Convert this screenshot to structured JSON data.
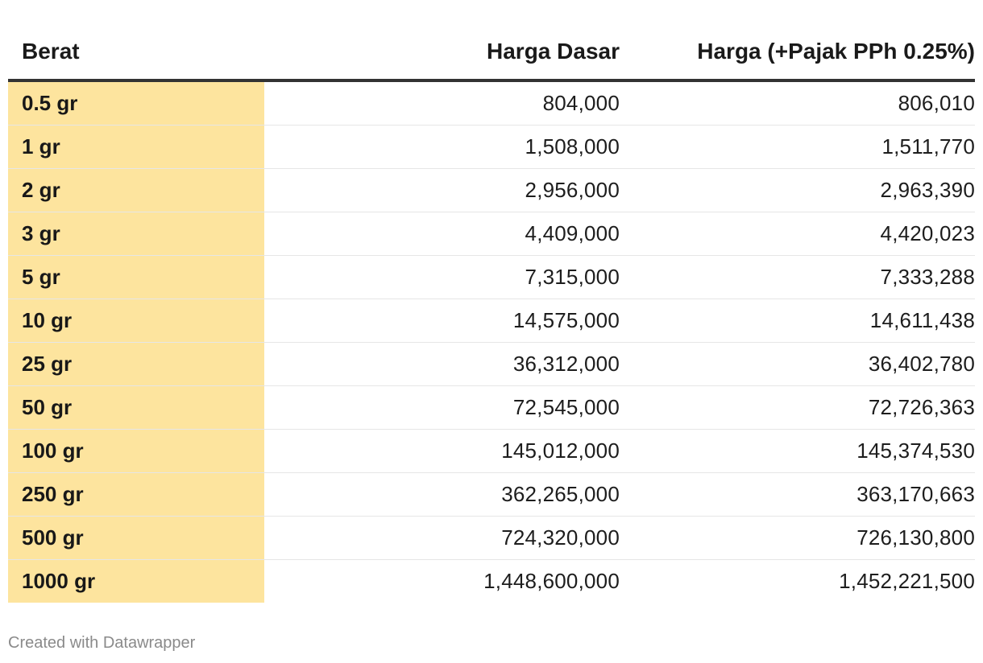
{
  "chart_data": {
    "type": "table",
    "columns": [
      "Berat",
      "Harga Dasar",
      "Harga (+Pajak PPh 0.25%)"
    ],
    "rows": [
      [
        "0.5 gr",
        "804,000",
        "806,010"
      ],
      [
        "1 gr",
        "1,508,000",
        "1,511,770"
      ],
      [
        "2 gr",
        "2,956,000",
        "2,963,390"
      ],
      [
        "3 gr",
        "4,409,000",
        "4,420,023"
      ],
      [
        "5 gr",
        "7,315,000",
        "7,333,288"
      ],
      [
        "10 gr",
        "14,575,000",
        "14,611,438"
      ],
      [
        "25 gr",
        "36,312,000",
        "36,402,780"
      ],
      [
        "50 gr",
        "72,545,000",
        "72,726,363"
      ],
      [
        "100 gr",
        "145,012,000",
        "145,374,530"
      ],
      [
        "250 gr",
        "362,265,000",
        "363,170,663"
      ],
      [
        "500 gr",
        "724,320,000",
        "726,130,800"
      ],
      [
        "1000 gr",
        "1,448,600,000",
        "1,452,221,500"
      ]
    ],
    "highlight_color": "#fde49e",
    "header_rule_color": "#333333"
  },
  "footer": {
    "credit": "Created with Datawrapper"
  }
}
